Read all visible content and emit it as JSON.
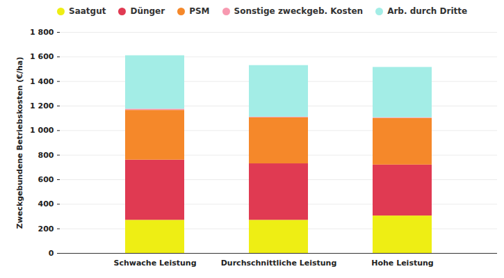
{
  "chart_data": {
    "type": "bar",
    "stacked": true,
    "ylabel": "Zweckgebundene Betriebskosten (€/ha)",
    "categories": [
      "Schwache Leistung",
      "Durchschnittliche Leistung",
      "Hohe Leistung"
    ],
    "series": [
      {
        "name": "Saatgut",
        "color": "#eeee14",
        "values": [
          270,
          270,
          305
        ]
      },
      {
        "name": "Dünger",
        "color": "#e03a52",
        "values": [
          490,
          460,
          415
        ]
      },
      {
        "name": "PSM",
        "color": "#f5882a",
        "values": [
          405,
          375,
          380
        ]
      },
      {
        "name": "Sonstige zweckgeb. Kosten",
        "color": "#f799b0",
        "values": [
          10,
          5,
          5
        ]
      },
      {
        "name": "Arb. durch Dritte",
        "color": "#a3ede6",
        "values": [
          435,
          420,
          410
        ]
      }
    ],
    "ylim": [
      0,
      1800
    ],
    "yticks": [
      0,
      200,
      400,
      600,
      800,
      {
        "value": 1000,
        "label": "1 000"
      },
      {
        "value": 1200,
        "label": "1 200"
      },
      {
        "value": 1400,
        "label": "1 400"
      },
      {
        "value": 1600,
        "label": "1 600"
      },
      {
        "value": 1800,
        "label": "1 800"
      }
    ],
    "grid": true,
    "legend": "top"
  }
}
